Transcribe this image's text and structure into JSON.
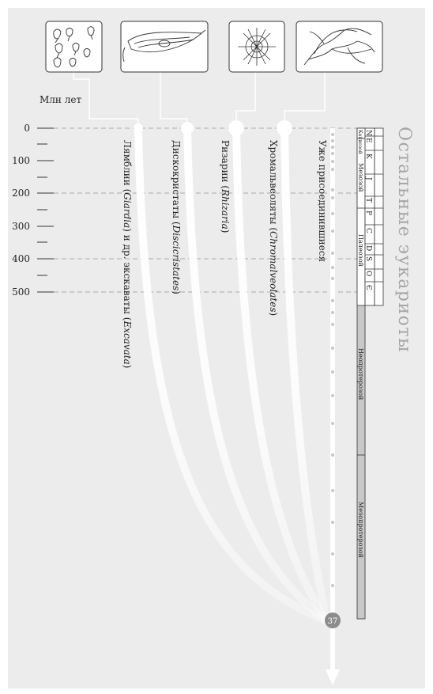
{
  "header": {
    "time_unit_label": "Млн лет",
    "side_title": "Остальные эукариоты"
  },
  "time_axis": {
    "ticks": [
      {
        "value": 0,
        "label": "0"
      },
      {
        "value": 100,
        "label": "100"
      },
      {
        "value": 200,
        "label": "200"
      },
      {
        "value": 300,
        "label": "300"
      },
      {
        "value": 400,
        "label": "400"
      },
      {
        "value": 500,
        "label": "500"
      }
    ]
  },
  "lineages": [
    {
      "name_ru": "Лямблии (",
      "name_lat": "Giardia",
      "name_ru_after": ") и др. экскаваты (",
      "name_lat2": "Excavata",
      "tail": ")",
      "icon": "giardia-cells-icon"
    },
    {
      "name_ru": "Дискокристаты (",
      "name_lat": "Discicristates",
      "tail": ")",
      "icon": "euglenoid-cell-icon"
    },
    {
      "name_ru": "Ризарии (",
      "name_lat": "Rhizaria",
      "tail": ")",
      "icon": "radiolarian-icon"
    },
    {
      "name_ru": "Хромальвеоляты (",
      "name_lat": "Chromalveolates",
      "tail": ")",
      "icon": "brown-algae-icon"
    },
    {
      "name_ru": "Уже присоединившиеся",
      "icon": ""
    }
  ],
  "node": {
    "number": "37"
  },
  "geologic_scale": {
    "periods": [
      "N",
      "E",
      "K",
      "J",
      "T",
      "P",
      "C",
      "D",
      "S",
      "O",
      "Є"
    ],
    "eras": [
      "Кайнозой",
      "Мезозой",
      "Палеозой"
    ],
    "eons": [
      "Неопротерозой",
      "Мезопротерозой"
    ]
  },
  "colors": {
    "background": "#ececec",
    "lines": "#ffffff",
    "text": "#222222",
    "node_fill": "#8c8c8c",
    "scale_shade": "#c8c8c8",
    "side_title": "#a6a6a6"
  }
}
